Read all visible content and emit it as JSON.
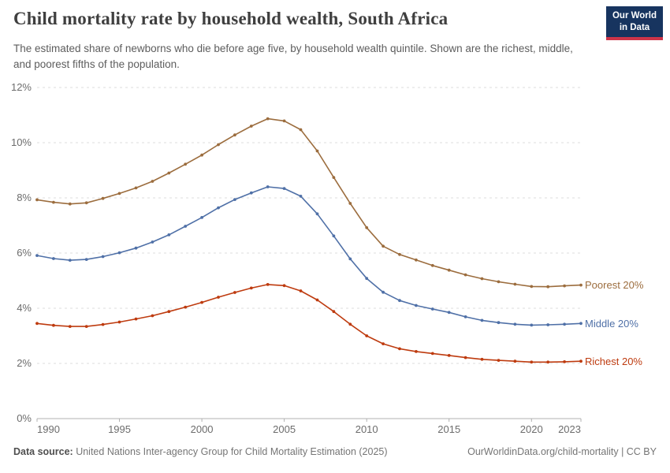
{
  "header": {
    "title": "Child mortality rate by household wealth, South Africa",
    "subtitle": "The estimated share of newborns who die before age five, by household wealth quintile. Shown are the richest, middle, and poorest fifths of the population.",
    "logo": {
      "line1": "Our World",
      "line2": "in Data",
      "bg_color": "#17345F",
      "accent_color": "#CE3449"
    }
  },
  "chart_data": {
    "type": "line",
    "title": "Child mortality rate by household wealth, South Africa",
    "xlabel": "",
    "ylabel": "",
    "unit": "%",
    "xlim": [
      1990,
      2023
    ],
    "ylim": [
      0,
      12
    ],
    "grid": "horizontal-dashed",
    "grid_color": "#dcdcdc",
    "axis_color": "#b0b0b0",
    "legend_position": "right-of-line-ends",
    "x": [
      1990,
      1991,
      1992,
      1993,
      1994,
      1995,
      1996,
      1997,
      1998,
      1999,
      2000,
      2001,
      2002,
      2003,
      2004,
      2005,
      2006,
      2007,
      2008,
      2009,
      2010,
      2011,
      2012,
      2013,
      2014,
      2015,
      2016,
      2017,
      2018,
      2019,
      2020,
      2021,
      2022,
      2023
    ],
    "series": [
      {
        "name": "Poorest 20%",
        "color": "#9C6D3E",
        "values": [
          7.93,
          7.84,
          7.78,
          7.82,
          7.98,
          8.16,
          8.36,
          8.6,
          8.9,
          9.22,
          9.55,
          9.93,
          10.28,
          10.6,
          10.87,
          10.79,
          10.47,
          9.7,
          8.74,
          7.8,
          6.92,
          6.25,
          5.95,
          5.75,
          5.55,
          5.38,
          5.21,
          5.07,
          4.96,
          4.87,
          4.79,
          4.78,
          4.81,
          4.84
        ]
      },
      {
        "name": "Middle 20%",
        "color": "#4F70A7",
        "values": [
          5.91,
          5.8,
          5.74,
          5.77,
          5.87,
          6.01,
          6.18,
          6.4,
          6.66,
          6.97,
          7.29,
          7.64,
          7.94,
          8.18,
          8.4,
          8.34,
          8.06,
          7.42,
          6.62,
          5.79,
          5.08,
          4.58,
          4.28,
          4.1,
          3.97,
          3.85,
          3.69,
          3.56,
          3.48,
          3.42,
          3.39,
          3.4,
          3.42,
          3.45
        ]
      },
      {
        "name": "Richest 20%",
        "color": "#BE3B0F",
        "values": [
          3.45,
          3.38,
          3.34,
          3.34,
          3.41,
          3.5,
          3.61,
          3.73,
          3.88,
          4.04,
          4.21,
          4.4,
          4.57,
          4.73,
          4.86,
          4.82,
          4.63,
          4.3,
          3.88,
          3.42,
          3.0,
          2.71,
          2.53,
          2.43,
          2.36,
          2.29,
          2.21,
          2.15,
          2.11,
          2.08,
          2.05,
          2.05,
          2.06,
          2.08
        ]
      }
    ],
    "y_ticks": [
      {
        "value": 0,
        "label": "0%"
      },
      {
        "value": 2,
        "label": "2%"
      },
      {
        "value": 4,
        "label": "4%"
      },
      {
        "value": 6,
        "label": "6%"
      },
      {
        "value": 8,
        "label": "8%"
      },
      {
        "value": 10,
        "label": "10%"
      },
      {
        "value": 12,
        "label": "12%"
      }
    ],
    "x_ticks": [
      {
        "value": 1990,
        "label": "1990"
      },
      {
        "value": 1995,
        "label": "1995"
      },
      {
        "value": 2000,
        "label": "2000"
      },
      {
        "value": 2005,
        "label": "2005"
      },
      {
        "value": 2010,
        "label": "2010"
      },
      {
        "value": 2015,
        "label": "2015"
      },
      {
        "value": 2020,
        "label": "2020"
      },
      {
        "value": 2023,
        "label": "2023"
      }
    ]
  },
  "footer": {
    "datasource_label": "Data source:",
    "datasource_text": " United Nations Inter-agency Group for Child Mortality Estimation (2025)",
    "attribution": "OurWorldinData.org/child-mortality | CC BY"
  }
}
